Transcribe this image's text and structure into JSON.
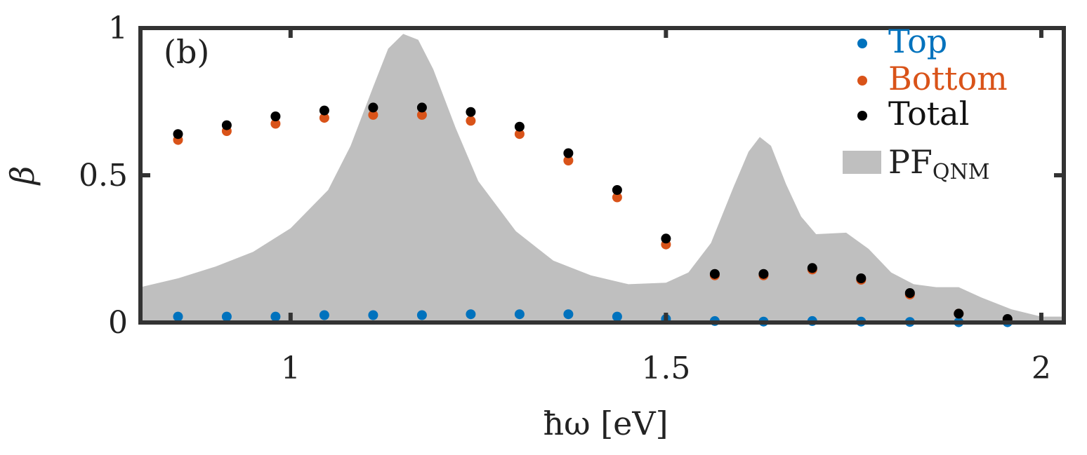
{
  "chart_data": {
    "type": "scatter",
    "panel_label": "(b)",
    "xlabel": "ħω [eV]",
    "ylabel": "β",
    "xlim": [
      0.8,
      2.03
    ],
    "ylim": [
      0,
      1
    ],
    "xticks": [
      1,
      1.5,
      2
    ],
    "xtick_labels": [
      "1",
      "1.5",
      "2"
    ],
    "yticks": [
      0,
      0.5,
      1
    ],
    "ytick_labels": [
      "0",
      "0.5",
      "1"
    ],
    "grid": false,
    "legend_position": "top-right",
    "x": [
      0.85,
      0.915,
      0.98,
      1.045,
      1.11,
      1.175,
      1.24,
      1.305,
      1.37,
      1.435,
      1.5,
      1.565,
      1.63,
      1.695,
      1.76,
      1.825,
      1.89,
      1.955
    ],
    "series": [
      {
        "name": "Top",
        "color": "#0072BD",
        "values": [
          0.02,
          0.02,
          0.02,
          0.025,
          0.025,
          0.025,
          0.028,
          0.028,
          0.028,
          0.02,
          0.012,
          0.005,
          0.003,
          0.005,
          0.003,
          0.002,
          0.001,
          0.001
        ]
      },
      {
        "name": "Bottom",
        "color": "#D95319",
        "values": [
          0.62,
          0.65,
          0.675,
          0.695,
          0.705,
          0.705,
          0.685,
          0.64,
          0.55,
          0.425,
          0.265,
          0.16,
          0.16,
          0.18,
          0.145,
          0.095,
          0.03,
          0.01
        ]
      },
      {
        "name": "Total",
        "color": "#000000",
        "values": [
          0.64,
          0.67,
          0.7,
          0.72,
          0.73,
          0.73,
          0.715,
          0.665,
          0.575,
          0.45,
          0.285,
          0.165,
          0.165,
          0.185,
          0.15,
          0.1,
          0.03,
          0.012
        ]
      }
    ],
    "area_series": {
      "name": "PF",
      "name_subscript": "QNM",
      "color": "#BFBFBF",
      "x": [
        0.8,
        0.85,
        0.9,
        0.95,
        1.0,
        1.05,
        1.08,
        1.11,
        1.13,
        1.15,
        1.17,
        1.19,
        1.22,
        1.25,
        1.3,
        1.35,
        1.4,
        1.45,
        1.5,
        1.53,
        1.56,
        1.59,
        1.61,
        1.625,
        1.64,
        1.66,
        1.68,
        1.7,
        1.74,
        1.77,
        1.8,
        1.83,
        1.86,
        1.89,
        1.92,
        1.96,
        2.0,
        2.03
      ],
      "values": [
        0.12,
        0.15,
        0.19,
        0.24,
        0.32,
        0.45,
        0.6,
        0.8,
        0.93,
        0.98,
        0.96,
        0.86,
        0.66,
        0.48,
        0.31,
        0.21,
        0.16,
        0.13,
        0.135,
        0.17,
        0.27,
        0.46,
        0.58,
        0.63,
        0.6,
        0.47,
        0.36,
        0.3,
        0.305,
        0.25,
        0.17,
        0.13,
        0.12,
        0.12,
        0.085,
        0.045,
        0.02,
        0.02
      ]
    }
  }
}
